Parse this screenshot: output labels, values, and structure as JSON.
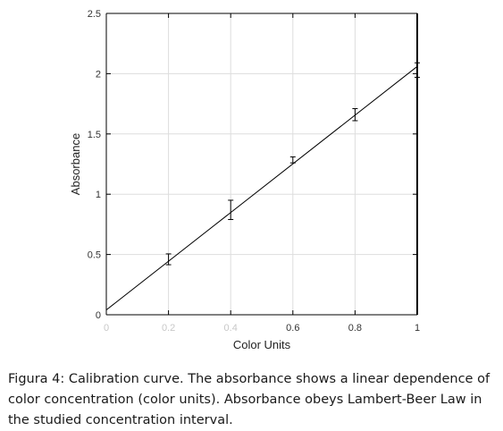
{
  "chart_data": {
    "type": "scatter",
    "xlabel": "Color Units",
    "ylabel": "Absorbance",
    "xlim": [
      0,
      1
    ],
    "ylim": [
      0,
      2.5
    ],
    "x_ticks": [
      {
        "value": 0,
        "label": "0",
        "faded": true
      },
      {
        "value": 0.2,
        "label": "0.2",
        "faded": true
      },
      {
        "value": 0.4,
        "label": "0.4",
        "faded": true
      },
      {
        "value": 0.6,
        "label": "0.6",
        "faded": false
      },
      {
        "value": 0.8,
        "label": "0.8",
        "faded": false
      },
      {
        "value": 1,
        "label": "1",
        "faded": false
      }
    ],
    "y_ticks": [
      {
        "value": 0,
        "label": "0"
      },
      {
        "value": 0.5,
        "label": "0.5"
      },
      {
        "value": 1,
        "label": "1"
      },
      {
        "value": 1.5,
        "label": "1.5"
      },
      {
        "value": 2,
        "label": "2"
      },
      {
        "value": 2.5,
        "label": "2.5"
      }
    ],
    "grid": true,
    "legend": "none",
    "series": [
      {
        "marker": "errorbar",
        "color": "#000000",
        "points": [
          {
            "x": 0.2,
            "y": 0.46,
            "err": 0.045
          },
          {
            "x": 0.4,
            "y": 0.87,
            "err": 0.08
          },
          {
            "x": 0.6,
            "y": 1.285,
            "err": 0.025
          },
          {
            "x": 0.8,
            "y": 1.66,
            "err": 0.05
          },
          {
            "x": 1.0,
            "y": 2.03,
            "err": 0.06
          }
        ]
      }
    ],
    "fit_line": {
      "color": "#000000",
      "x": [
        0,
        1
      ],
      "y": [
        0.04,
        2.06
      ]
    }
  },
  "caption": {
    "text": "Figura 4: Calibration curve. The absorbance shows a linear dependence of color concentration (color units). Absorbance obeys Lambert-Beer Law in the studied concentration interval."
  },
  "colors": {
    "axis": "#000000",
    "grid": "#dddddd",
    "tick_label": "#333333",
    "tick_label_faded": "#c8c8c8",
    "caption": "#1a1a1a"
  }
}
